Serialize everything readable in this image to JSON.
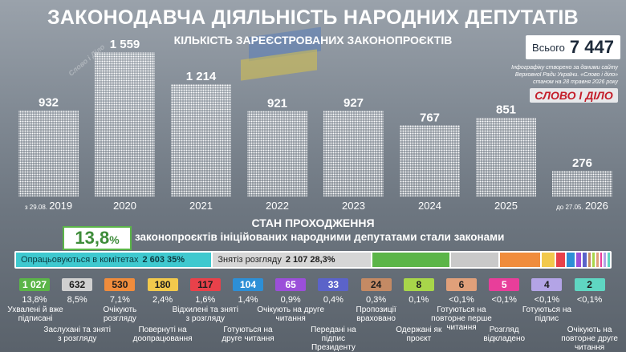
{
  "header": {
    "title": "ЗАКОНОДАВЧА ДІЯЛЬНІСТЬ НАРОДНИХ ДЕПУТАТІВ",
    "subtitle": "КІЛЬКІСТЬ ЗАРЕЄСТРОВАНИХ ЗАКОНОПРОЄКТІВ",
    "total_label": "Всього",
    "total_value": "7 447",
    "source_line1": "Інфографіку створено за даними сайту",
    "source_line2": "Верховної Ради України. «Слово і діло»",
    "source_line3": "станом на 28 травня 2026 року",
    "logo": "СЛОВО І ДІЛО",
    "watermark": "Слово і Діло"
  },
  "chart_data": {
    "type": "bar",
    "categories": [
      "2019",
      "2020",
      "2021",
      "2022",
      "2023",
      "2024",
      "2025",
      "2026"
    ],
    "values": [
      932,
      1559,
      1214,
      921,
      927,
      767,
      851,
      276
    ],
    "value_labels": [
      "932",
      "1 559",
      "1 214",
      "921",
      "927",
      "767",
      "851",
      "276"
    ],
    "category_prefixes": [
      "з 29.08.",
      "",
      "",
      "",
      "",
      "",
      "",
      "до 27.05."
    ],
    "ylim": [
      0,
      1559
    ],
    "bar_color": "#ffffff"
  },
  "status": {
    "title": "СТАН ПРОХОДЖЕННЯ",
    "percent": "13,8",
    "percent_unit": "%",
    "description": "законопроєктів ініційованих народними депутатами стали законами",
    "bar_segments": [
      {
        "label": "Опрацьовуються в комітетах",
        "value": "2 603",
        "pct": "35%",
        "fraction": 0.35,
        "color": "#3fc9cf",
        "text_color": "#0d3940"
      },
      {
        "label": "Знятіз розгляду",
        "value": "2 107",
        "pct": "28,3%",
        "fraction": 0.283,
        "color": "#d6d6d6",
        "text_color": "#1d1d1d"
      },
      {
        "label": "",
        "value": "",
        "pct": "",
        "fraction": 0.138,
        "color": "#5bb548",
        "text_color": "#ffffff"
      },
      {
        "label": "",
        "value": "",
        "pct": "",
        "fraction": 0.085,
        "color": "#c9c9c9",
        "text_color": "#ffffff"
      },
      {
        "label": "",
        "value": "",
        "pct": "",
        "fraction": 0.071,
        "color": "#f08c3c",
        "text_color": "#ffffff"
      },
      {
        "label": "",
        "value": "",
        "pct": "",
        "fraction": 0.024,
        "color": "#f2c94c",
        "text_color": "#ffffff"
      },
      {
        "label": "",
        "value": "",
        "pct": "",
        "fraction": 0.016,
        "color": "#e8414a",
        "text_color": "#ffffff"
      },
      {
        "label": "",
        "value": "",
        "pct": "",
        "fraction": 0.014,
        "color": "#2d8fd6",
        "text_color": "#ffffff"
      },
      {
        "label": "",
        "value": "",
        "pct": "",
        "fraction": 0.009,
        "color": "#9b4fd9",
        "text_color": "#ffffff"
      },
      {
        "label": "",
        "value": "",
        "pct": "",
        "fraction": 0.006,
        "color": "#5b63c9",
        "text_color": "#ffffff"
      },
      {
        "label": "",
        "value": "",
        "pct": "",
        "fraction": 0.005,
        "color": "#c48a64",
        "text_color": "#ffffff"
      },
      {
        "label": "",
        "value": "",
        "pct": "",
        "fraction": 0.004,
        "color": "#a8d64a",
        "text_color": "#ffffff"
      },
      {
        "label": "",
        "value": "",
        "pct": "",
        "fraction": 0.004,
        "color": "#e0a07a",
        "text_color": "#ffffff"
      },
      {
        "label": "",
        "value": "",
        "pct": "",
        "fraction": 0.004,
        "color": "#e83e9a",
        "text_color": "#ffffff"
      },
      {
        "label": "",
        "value": "",
        "pct": "",
        "fraction": 0.004,
        "color": "#b3a4e6",
        "text_color": "#ffffff"
      },
      {
        "label": "",
        "value": "",
        "pct": "",
        "fraction": 0.004,
        "color": "#5fd6c2",
        "text_color": "#ffffff"
      }
    ],
    "badges": [
      {
        "value": "1 027",
        "pct": "13,8%",
        "label": "Ухвалені й вже підписані",
        "color": "#5bb548",
        "text_color": "#ffffff"
      },
      {
        "value": "632",
        "pct": "8,5%",
        "label": "Заслухані та зняті з розгляду",
        "color": "#d0d0d0",
        "text_color": "#1d1d1d"
      },
      {
        "value": "530",
        "pct": "7,1%",
        "label": "Очікують розгляду",
        "color": "#f08c3c",
        "text_color": "#1d1d1d"
      },
      {
        "value": "180",
        "pct": "2,4%",
        "label": "Повернуті на доопрацювання",
        "color": "#f2c94c",
        "text_color": "#1d1d1d"
      },
      {
        "value": "117",
        "pct": "1,6%",
        "label": "Відхилені та зняті з розгляду",
        "color": "#e8414a",
        "text_color": "#1d1d1d"
      },
      {
        "value": "104",
        "pct": "1,4%",
        "label": "Готуються на друге читання",
        "color": "#2d8fd6",
        "text_color": "#ffffff"
      },
      {
        "value": "65",
        "pct": "0,9%",
        "label": "Очікують на друге читання",
        "color": "#9b4fd9",
        "text_color": "#ffffff"
      },
      {
        "value": "33",
        "pct": "0,4%",
        "label": "Передані на підпис Президенту",
        "color": "#5b63c9",
        "text_color": "#ffffff"
      },
      {
        "value": "24",
        "pct": "0,3%",
        "label": "Пропозиції враховано",
        "color": "#c48a64",
        "text_color": "#1d1d1d"
      },
      {
        "value": "8",
        "pct": "0,1%",
        "label": "Одержані як проєкт",
        "color": "#a8d64a",
        "text_color": "#1d1d1d"
      },
      {
        "value": "6",
        "pct": "<0,1%",
        "label": "Готуються на повторне перше читання",
        "color": "#e0a07a",
        "text_color": "#1d1d1d"
      },
      {
        "value": "5",
        "pct": "<0,1%",
        "label": "Розгляд відкладено",
        "color": "#e83e9a",
        "text_color": "#ffffff"
      },
      {
        "value": "4",
        "pct": "<0,1%",
        "label": "Готуються на підпис",
        "color": "#b3a4e6",
        "text_color": "#1d1d1d"
      },
      {
        "value": "2",
        "pct": "<0,1%",
        "label": "Очікують на повторне друге читання",
        "color": "#5fd6c2",
        "text_color": "#1d1d1d"
      }
    ]
  }
}
